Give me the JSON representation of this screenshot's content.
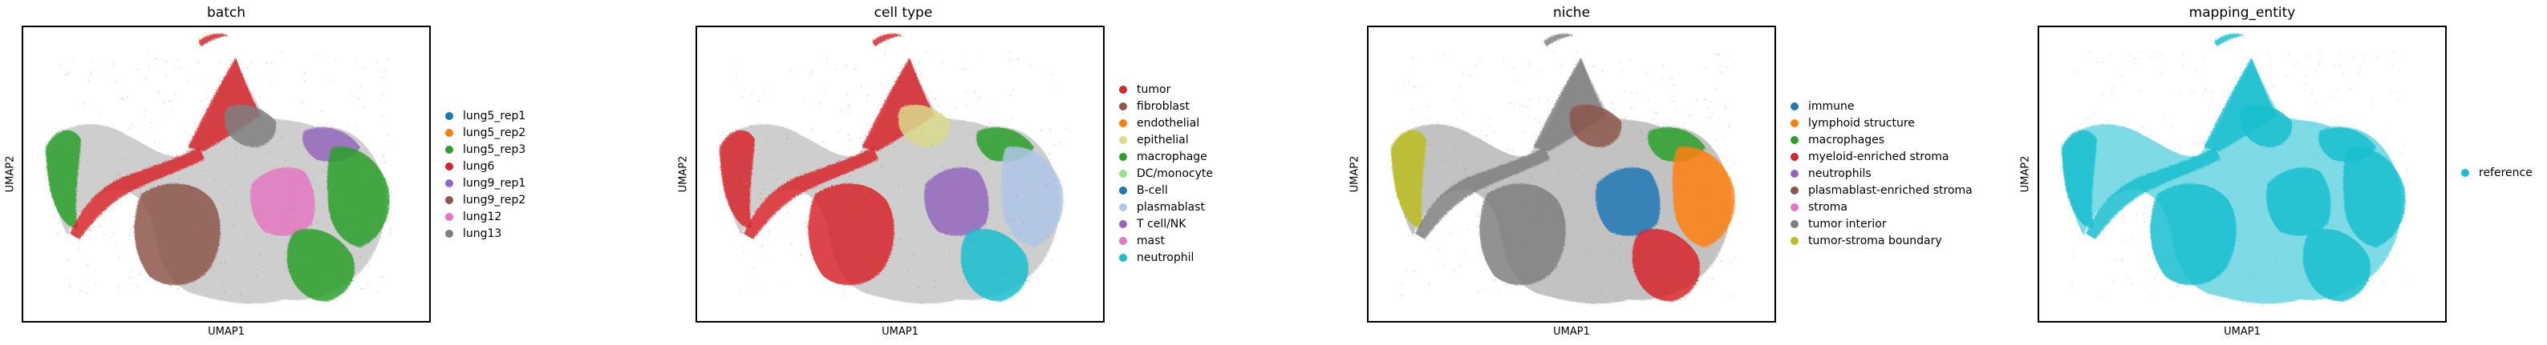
{
  "chart_data": [
    {
      "type": "scatter",
      "title": "batch",
      "xlabel": "UMAP1",
      "ylabel": "UMAP2",
      "legend_position": "right",
      "ticks": "none",
      "series": [
        {
          "name": "lung5_rep1",
          "color": "#1f77b4"
        },
        {
          "name": "lung5_rep2",
          "color": "#ff7f0e"
        },
        {
          "name": "lung5_rep3",
          "color": "#2ca02c"
        },
        {
          "name": "lung6",
          "color": "#d62728"
        },
        {
          "name": "lung9_rep1",
          "color": "#9467bd"
        },
        {
          "name": "lung9_rep2",
          "color": "#8c564b"
        },
        {
          "name": "lung12",
          "color": "#e377c2"
        },
        {
          "name": "lung13",
          "color": "#7f7f7f"
        }
      ],
      "regions": [
        {
          "shape": "main",
          "color": "#a6a6a6"
        },
        {
          "shape": "left_arm",
          "color": "#2ca02c"
        },
        {
          "shape": "tail",
          "color": "#d62728"
        },
        {
          "shape": "top_arm",
          "color": "#d62728"
        },
        {
          "shape": "hook",
          "color": "#d62728"
        },
        {
          "shape": "top_right",
          "color": "#9467bd"
        },
        {
          "shape": "right_blob",
          "color": "#2ca02c"
        },
        {
          "shape": "center_blob",
          "color": "#e377c2"
        },
        {
          "shape": "left_blob",
          "color": "#8c564b"
        },
        {
          "shape": "lower_right",
          "color": "#2ca02c"
        },
        {
          "shape": "mid_top",
          "color": "#7f7f7f"
        }
      ]
    },
    {
      "type": "scatter",
      "title": "cell type",
      "xlabel": "UMAP1",
      "ylabel": "UMAP2",
      "legend_position": "right",
      "ticks": "none",
      "series": [
        {
          "name": "tumor",
          "color": "#d62728"
        },
        {
          "name": "fibroblast",
          "color": "#8c564b"
        },
        {
          "name": "endothelial",
          "color": "#ff7f0e"
        },
        {
          "name": "epithelial",
          "color": "#dbdb8d"
        },
        {
          "name": "macrophage",
          "color": "#2ca02c"
        },
        {
          "name": "DC/monocyte",
          "color": "#98df8a"
        },
        {
          "name": "B-cell",
          "color": "#1f77b4"
        },
        {
          "name": "plasmablast",
          "color": "#aec7e8"
        },
        {
          "name": "T cell/NK",
          "color": "#9467bd"
        },
        {
          "name": "mast",
          "color": "#e377c2"
        },
        {
          "name": "neutrophil",
          "color": "#17becf"
        }
      ],
      "regions": [
        {
          "shape": "main",
          "color": "#a6a6a6"
        },
        {
          "shape": "left_arm",
          "color": "#d62728"
        },
        {
          "shape": "tail",
          "color": "#d62728"
        },
        {
          "shape": "top_arm",
          "color": "#d62728"
        },
        {
          "shape": "hook",
          "color": "#d62728"
        },
        {
          "shape": "top_right",
          "color": "#2ca02c"
        },
        {
          "shape": "right_blob",
          "color": "#aec7e8"
        },
        {
          "shape": "center_blob",
          "color": "#9467bd"
        },
        {
          "shape": "left_blob",
          "color": "#d62728"
        },
        {
          "shape": "lower_right",
          "color": "#17becf"
        },
        {
          "shape": "mid_top",
          "color": "#dbdb8d"
        }
      ]
    },
    {
      "type": "scatter",
      "title": "niche",
      "xlabel": "UMAP1",
      "ylabel": "UMAP2",
      "legend_position": "right",
      "ticks": "none",
      "series": [
        {
          "name": "immune",
          "color": "#1f77b4"
        },
        {
          "name": "lymphoid structure",
          "color": "#ff7f0e"
        },
        {
          "name": "macrophages",
          "color": "#2ca02c"
        },
        {
          "name": "myeloid-enriched stroma",
          "color": "#d62728"
        },
        {
          "name": "neutrophils",
          "color": "#9467bd"
        },
        {
          "name": "plasmablast-enriched stroma",
          "color": "#8c564b"
        },
        {
          "name": "stroma",
          "color": "#e377c2"
        },
        {
          "name": "tumor interior",
          "color": "#7f7f7f"
        },
        {
          "name": "tumor-stroma boundary",
          "color": "#bcbd22"
        }
      ],
      "regions": [
        {
          "shape": "main",
          "color": "#8f8f8f"
        },
        {
          "shape": "left_arm",
          "color": "#bcbd22"
        },
        {
          "shape": "tail",
          "color": "#7f7f7f"
        },
        {
          "shape": "top_arm",
          "color": "#7f7f7f"
        },
        {
          "shape": "hook",
          "color": "#7f7f7f"
        },
        {
          "shape": "top_right",
          "color": "#2ca02c"
        },
        {
          "shape": "right_blob",
          "color": "#ff7f0e"
        },
        {
          "shape": "center_blob",
          "color": "#1f77b4"
        },
        {
          "shape": "left_blob",
          "color": "#7f7f7f"
        },
        {
          "shape": "lower_right",
          "color": "#d62728"
        },
        {
          "shape": "mid_top",
          "color": "#8c564b"
        }
      ]
    },
    {
      "type": "scatter",
      "title": "mapping_entity",
      "xlabel": "UMAP1",
      "ylabel": "UMAP2",
      "legend_position": "right",
      "ticks": "none",
      "series": [
        {
          "name": "reference",
          "color": "#17becf"
        }
      ],
      "regions": [
        {
          "shape": "main",
          "color": "#17becf"
        },
        {
          "shape": "left_arm",
          "color": "#17becf"
        },
        {
          "shape": "tail",
          "color": "#17becf"
        },
        {
          "shape": "top_arm",
          "color": "#17becf"
        },
        {
          "shape": "hook",
          "color": "#17becf"
        },
        {
          "shape": "top_right",
          "color": "#17becf"
        },
        {
          "shape": "right_blob",
          "color": "#17becf"
        },
        {
          "shape": "center_blob",
          "color": "#17becf"
        },
        {
          "shape": "left_blob",
          "color": "#17becf"
        },
        {
          "shape": "lower_right",
          "color": "#17becf"
        },
        {
          "shape": "mid_top",
          "color": "#17becf"
        }
      ]
    }
  ]
}
